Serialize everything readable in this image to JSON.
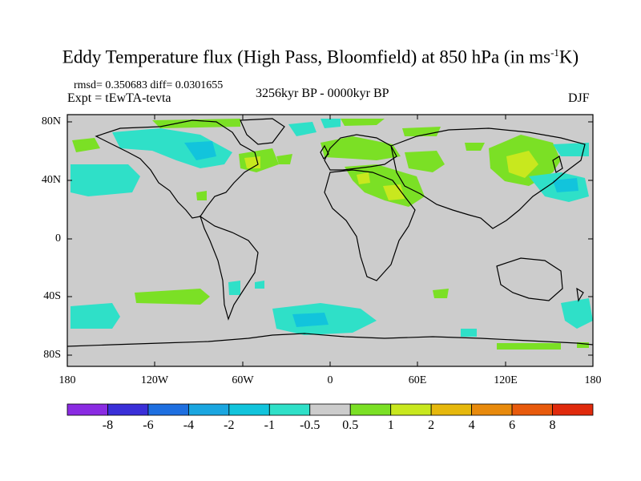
{
  "title": {
    "main": "Eddy Temperature flux (High Pass, Bloomfield) at 850 hPa (in ms",
    "sup": "-1",
    "end": "K)"
  },
  "stats_line": "rmsd= 0.350683 diff= 0.0301655",
  "experiment": "Expt = tEwTA-tevta",
  "period": "3256kyr BP - 0000kyr BP",
  "season": "DJF",
  "lon_ticks": [
    "180",
    "120W",
    "60W",
    "0",
    "60E",
    "120E",
    "180"
  ],
  "lat_ticks": [
    "80N",
    "40N",
    "0",
    "40S",
    "80S"
  ],
  "colorbar": {
    "labels": [
      "-8",
      "-6",
      "-4",
      "-2",
      "-1",
      "-0.5",
      "0.5",
      "1",
      "2",
      "4",
      "6",
      "8"
    ],
    "colors": [
      "#8a2be2",
      "#3a2fd8",
      "#1e6fe0",
      "#1aa6e0",
      "#12c4dc",
      "#2fe0c8",
      "#cccccc",
      "#7be025",
      "#c8e81e",
      "#e6b80c",
      "#e88a0c",
      "#e85a0c",
      "#e02a0c"
    ]
  },
  "colors": {
    "land_ocean_neutral": "#cccccc",
    "coast": "#000000"
  }
}
